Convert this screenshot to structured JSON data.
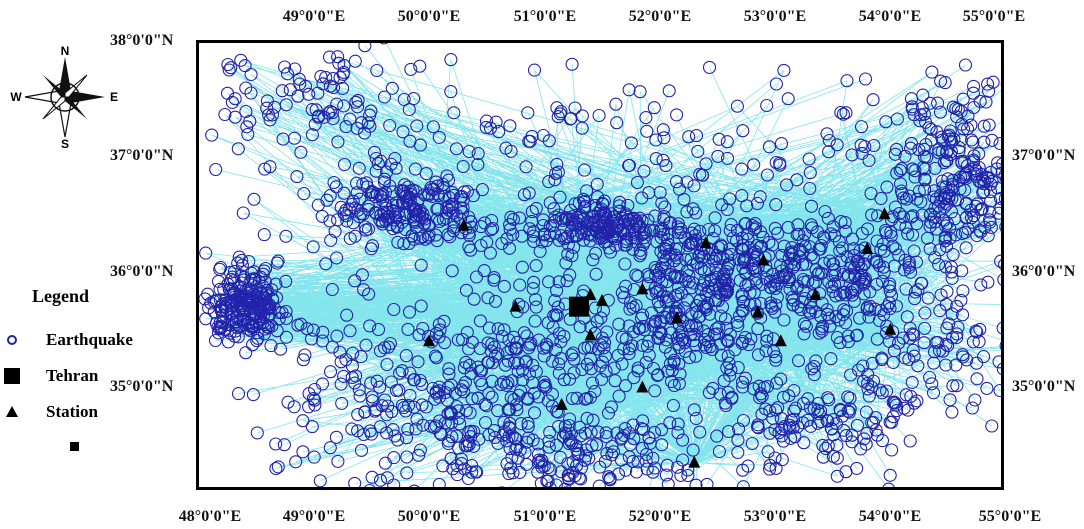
{
  "map": {
    "longitude_labels": [
      "48°0'0\"E",
      "49°0'0\"E",
      "50°0'0\"E",
      "51°0'0\"E",
      "52°0'0\"E",
      "53°0'0\"E",
      "54°0'0\"E",
      "55°0'0\"E"
    ],
    "latitude_labels": [
      "38°0'0\"N",
      "37°0'0\"N",
      "36°0'0\"N",
      "35°0'0\"N"
    ],
    "extent": {
      "lon_min": 48.0,
      "lon_max": 55.0,
      "lat_min": 34.1,
      "lat_max": 38.0
    },
    "colors": {
      "earthquake": "#2222aa",
      "ray_path": "#6ee0ea",
      "station": "#000000",
      "frame": "#000000"
    },
    "tehran": {
      "lon": 51.2,
      "lat": 35.7
    },
    "stations": [
      {
        "lon": 50.2,
        "lat": 36.4
      },
      {
        "lon": 52.3,
        "lat": 36.25
      },
      {
        "lon": 52.8,
        "lat": 36.1
      },
      {
        "lon": 53.7,
        "lat": 36.2
      },
      {
        "lon": 53.85,
        "lat": 36.5
      },
      {
        "lon": 53.25,
        "lat": 35.8
      },
      {
        "lon": 51.75,
        "lat": 35.85
      },
      {
        "lon": 51.3,
        "lat": 35.8
      },
      {
        "lon": 51.4,
        "lat": 35.75
      },
      {
        "lon": 50.65,
        "lat": 35.7
      },
      {
        "lon": 49.9,
        "lat": 35.4
      },
      {
        "lon": 51.3,
        "lat": 35.45
      },
      {
        "lon": 52.05,
        "lat": 35.6
      },
      {
        "lon": 52.75,
        "lat": 35.65
      },
      {
        "lon": 52.95,
        "lat": 35.4
      },
      {
        "lon": 53.9,
        "lat": 35.5
      },
      {
        "lon": 51.05,
        "lat": 34.85
      },
      {
        "lon": 51.75,
        "lat": 35.0
      },
      {
        "lon": 52.2,
        "lat": 34.35
      }
    ]
  },
  "compass": {
    "north": "N",
    "south": "S",
    "east": "E",
    "west": "W"
  },
  "legend": {
    "title": "Legend",
    "items": [
      {
        "label": "Earthquake",
        "symbol": "circle-icon"
      },
      {
        "label": "Tehran",
        "symbol": "square-icon"
      },
      {
        "label": "Station",
        "symbol": "triangle-icon"
      },
      {
        "label": "",
        "symbol": "small-square-icon"
      }
    ]
  }
}
